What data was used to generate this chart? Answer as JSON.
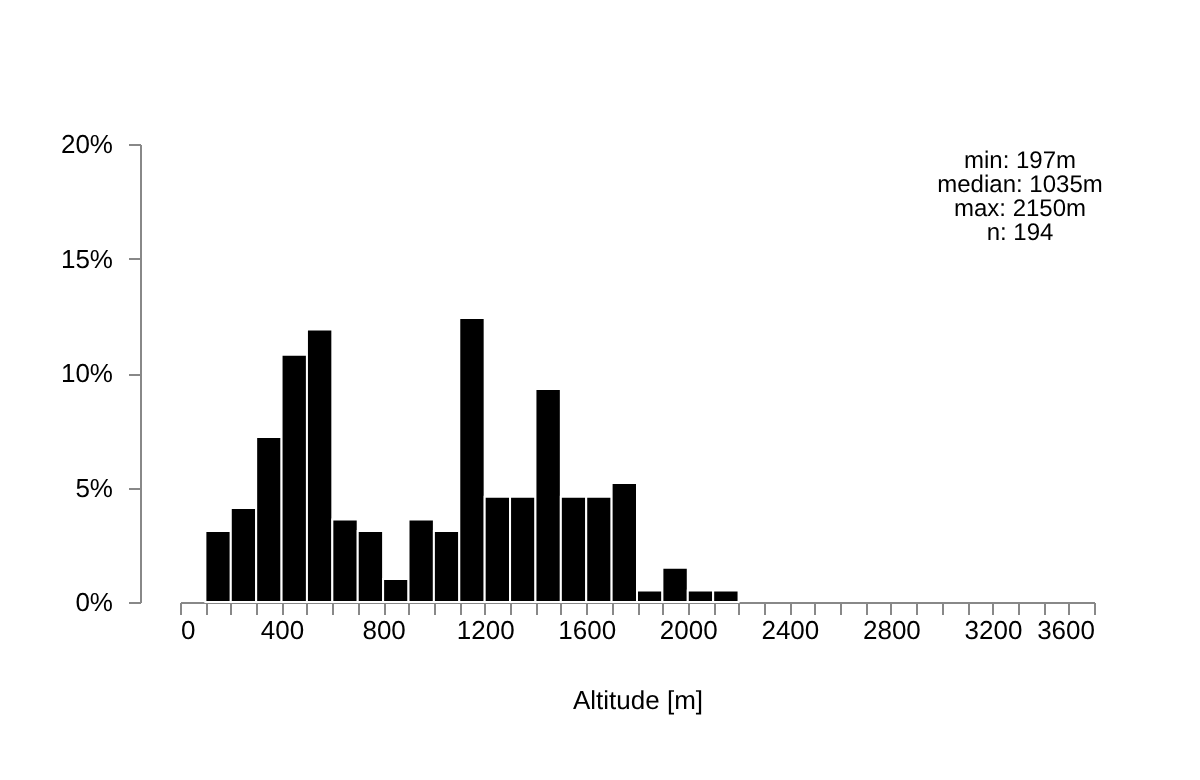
{
  "chart_data": {
    "type": "histogram",
    "xlabel": "Altitude [m]",
    "bins": [
      100,
      200,
      300,
      400,
      500,
      600,
      700,
      800,
      900,
      1000,
      1100,
      1200,
      1300,
      1400,
      1500,
      1600,
      1700,
      1800,
      1900,
      2000,
      2100,
      2200
    ],
    "values": [
      3.1,
      4.1,
      7.2,
      10.8,
      11.9,
      3.6,
      3.1,
      1.0,
      3.6,
      3.1,
      12.4,
      4.6,
      4.6,
      9.3,
      4.6,
      4.6,
      5.2,
      0.5,
      1.5,
      0.5,
      0.5
    ],
    "color": "#000000",
    "xlim": [
      0,
      3600
    ],
    "xticks": [
      0,
      {
        "value": 100,
        "label": null
      },
      {
        "value": 200,
        "label": null
      },
      {
        "value": 300,
        "label": null
      },
      400,
      {
        "value": 500,
        "label": null
      },
      {
        "value": 600,
        "label": null
      },
      {
        "value": 700,
        "label": null
      },
      800,
      {
        "value": 900,
        "label": null
      },
      {
        "value": 1000,
        "label": null
      },
      {
        "value": 1100,
        "label": null
      },
      1200,
      {
        "value": 1300,
        "label": null
      },
      {
        "value": 1400,
        "label": null
      },
      {
        "value": 1500,
        "label": null
      },
      1600,
      {
        "value": 1700,
        "label": null
      },
      {
        "value": 1800,
        "label": null
      },
      {
        "value": 1900,
        "label": null
      },
      2000,
      {
        "value": 2100,
        "label": null
      },
      {
        "value": 2200,
        "label": null
      },
      {
        "value": 2300,
        "label": null
      },
      2400,
      {
        "value": 2500,
        "label": null
      },
      {
        "value": 2600,
        "label": null
      },
      {
        "value": 2700,
        "label": null
      },
      2800,
      {
        "value": 2900,
        "label": null
      },
      {
        "value": 3000,
        "label": null
      },
      {
        "value": 3100,
        "label": null
      },
      3200,
      {
        "value": 3300,
        "label": null
      },
      {
        "value": 3400,
        "label": null
      },
      {
        "value": 3500,
        "label": null
      },
      3600
    ],
    "ylim": [
      0,
      20
    ],
    "yticks": [
      {
        "value": 0,
        "label": "0%"
      },
      {
        "value": 5,
        "label": "5%"
      },
      {
        "value": 10,
        "label": "10%"
      },
      {
        "value": 15,
        "label": "15%"
      },
      {
        "value": 20,
        "label": "20%"
      }
    ],
    "annotations": [
      "min: 197m",
      "median: 1035m",
      "max: 2150m",
      "n:  194"
    ],
    "grid": false
  }
}
